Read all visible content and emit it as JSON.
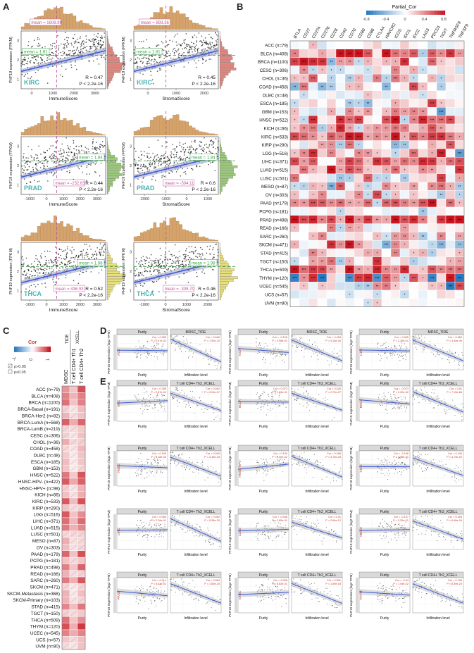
{
  "panels": {
    "A": "A",
    "B": "B",
    "C": "C",
    "D": "D",
    "E": "E"
  },
  "panel_a": {
    "ylabel": "PHF19 expression (FPKM)",
    "plots": [
      {
        "cancer": "KIRC",
        "xlabel": "ImmuneScore",
        "mean_x": "mean = 1608.99",
        "mean_y": "mean = 1.81",
        "R": "R = 0.47",
        "P": "P < 2.2e-16",
        "xticks": [
          "0",
          "1000",
          "2000",
          "3000"
        ],
        "yticks": [
          "1",
          "2",
          "3"
        ],
        "histcolor": "#e0877f"
      },
      {
        "cancer": "KIRC",
        "xlabel": "StromalScore",
        "mean_x": "mean = 893.36",
        "mean_y": "mean = 1.81",
        "R": "R = 0.45",
        "P": "P < 2.2e-16",
        "xticks": [
          "0",
          "1000",
          "2000"
        ],
        "yticks": [
          "1",
          "2",
          "3"
        ],
        "histcolor": "#e0877f"
      },
      {
        "cancer": "PRAD",
        "xlabel": "ImmuneScore",
        "mean_x": "mean = -152.63",
        "mean_y": "mean = 1.84",
        "R": "R = 0.44",
        "P": "P < 2.2e-16",
        "xticks": [
          "-1000",
          "0",
          "1000",
          "2000",
          "3000"
        ],
        "yticks": [
          "1",
          "2",
          "3"
        ],
        "histcolor": "#9cc97a"
      },
      {
        "cancer": "PRAD",
        "xlabel": "StromalScore",
        "mean_x": "mean = -504.11",
        "mean_y": "mean = 1.84",
        "R": "R = 0.6",
        "P": "P < 2.2e-16",
        "xticks": [
          "-2000",
          "-1000",
          "0",
          "1000"
        ],
        "yticks": [
          "1",
          "2",
          "3"
        ],
        "histcolor": "#9cc97a"
      },
      {
        "cancer": "THCA",
        "xlabel": "ImmuneScore",
        "mean_x": "mean = 436.93",
        "mean_y": "mean = 1.98",
        "R": "R = 0.52",
        "P": "P < 2.2e-16",
        "xticks": [
          "-1000",
          "0",
          "1000",
          "2000",
          "3000"
        ],
        "yticks": [
          "1",
          "2",
          "3"
        ],
        "histcolor": "#e8e07a"
      },
      {
        "cancer": "THCA",
        "xlabel": "StromalScore",
        "mean_x": "mean = -308.70",
        "mean_y": "mean = 1.98",
        "R": "R = 0.46",
        "P": "P < 2.2e-16",
        "xticks": [
          "-1000",
          "0",
          "1000",
          "2000"
        ],
        "yticks": [
          "1",
          "2",
          "3"
        ],
        "histcolor": "#e8e07a"
      }
    ]
  },
  "panel_b": {
    "legend_title": "Partial_Cor",
    "legend_ticks": [
      "-0.8",
      "-0.4",
      "0",
      "0.4",
      "0.8"
    ],
    "genes": [
      "BTLA",
      "CD27",
      "CD274",
      "CD276",
      "CD28",
      "CD40",
      "CD70",
      "CD80",
      "CD86",
      "CTLA4",
      "HAVCR2",
      "ICOS",
      "IDO1",
      "IDO2",
      "LAG3",
      "PDCD1",
      "TIGIT",
      "TNFRSF9",
      "TNFSF9"
    ],
    "rows": [
      "ACC (n=79)",
      "BLCA (n=408)",
      "BRCA (n=1100)",
      "CESC (n=306)",
      "CHOL (n=36)",
      "COAD (n=458)",
      "DLBC (n=48)",
      "ESCA (n=185)",
      "GBM (n=153)",
      "HNSC (n=522)",
      "KICH (n=66)",
      "KIRC (n=533)",
      "KIRP (n=290)",
      "LGG (n=516)",
      "LIHC (n=371)",
      "LUAD (n=515)",
      "LUSC (n=501)",
      "MESO (n=87)",
      "OV (n=303)",
      "PAAD (n=179)",
      "PCPG (n=181)",
      "PRAD (n=498)",
      "READ (n=166)",
      "SARC (n=260)",
      "SKCM (n=471)",
      "STAD (n=415)",
      "TGCT (n=150)",
      "THCA (n=509)",
      "THYM (n=120)",
      "UCEC (n=545)",
      "UCS (n=57)",
      "UVM (n=80)"
    ]
  },
  "panel_c": {
    "legend_title": "Cor",
    "legend_ticks": [
      "-1",
      "0",
      "1"
    ],
    "sig_legend": [
      "p>0.05",
      "p≤0.05"
    ],
    "group_labels": [
      "TIDE",
      "XCELL"
    ],
    "columns": [
      "MDSC",
      "T cell CD4+ Th1",
      "T cell CD4+ Th2"
    ],
    "rows": [
      "ACC (n=79)",
      "BLCA (n=408)",
      "BRCA (n=1100)",
      "BRCA-Basal (n=191)",
      "BRCA-Her2 (n=82)",
      "BRCA-LumA (n=568)",
      "BRCA-LumB (n=219)",
      "CESC (n=306)",
      "CHOL (n=36)",
      "COAD (n=458)",
      "DLBC (n=48)",
      "ESCA (n=185)",
      "GBM (n=153)",
      "HNSC (n=522)",
      "HNSC-HPV- (n=422)",
      "HNSC-HPV+ (n=98)",
      "KICH (n=66)",
      "KIRC (n=533)",
      "KIRP (n=290)",
      "LGG (n=516)",
      "LIHC (n=371)",
      "LUAD (n=515)",
      "LUSC (n=501)",
      "MESO (n=87)",
      "OV (n=303)",
      "PAAD (n=179)",
      "PCPG (n=181)",
      "PRAD (n=498)",
      "READ (n=166)",
      "SARC (n=260)",
      "SKCM (n=471)",
      "SKCM-Metastasis (n=368)",
      "SKCM-Primary (n=103)",
      "STAD (n=415)",
      "TGCT (n=150)",
      "THCA (n=509)",
      "THYM (n=120)",
      "UCEC (n=545)",
      "UCS (n=57)",
      "UVM (n=80)"
    ]
  },
  "panel_de": {
    "ylabel": "PHF19 expression (log2 TPM)",
    "xlabel_purity": "Purity",
    "xlabel_infil": "Infiltration level",
    "d_plots": [
      {
        "cancer": "ACC",
        "right_title": "MDSC_TIDE",
        "cor1": "Cor = 0.289",
        "p1": "P = 2.67e-02",
        "cor2": "Cor = 0.646",
        "p2": "P = 7.92e-10"
      },
      {
        "cancer": "KICH",
        "right_title": "MDSC_TIDE",
        "cor1": "Cor = -0.106",
        "p1": "P = 3.98e-01",
        "cor2": "Cor = 0.423",
        "p2": "P = 4.10e-04"
      },
      {
        "cancer": "LIHC",
        "right_title": "MDSC_TIDE",
        "cor1": "Cor = 0.065",
        "p1": "P = 2.26e-01",
        "cor2": "Cor = 0.669",
        "p2": "P = 3.49e-49"
      }
    ],
    "e_plots": [
      {
        "cancer": "ACC",
        "right_title": "T cell CD4+ Th2_XCELL",
        "cor1": "Cor = 0.289",
        "p1": "P = 2.67e-02",
        "cor2": "Cor = 0.552",
        "p2": "P = 2.24e-07"
      },
      {
        "cancer": "BLCA",
        "right_title": "T cell CD4+ Th2_XCELL",
        "cor1": "Cor = 0.073",
        "p1": "P = 1.63e-01",
        "cor2": "Cor = 0.526",
        "p2": "P = 2.72e-27"
      },
      {
        "cancer": "BRCA",
        "right_title": "T cell CD4+ Th2_XCELL",
        "cor1": "Cor = -0.073",
        "p1": "P = 2.20e-02",
        "cor2": "Cor = 0.51",
        "p2": "P = 7.19e-66"
      },
      {
        "cancer": "HNSC",
        "right_title": "T cell CD4+ Th2_XCELL",
        "cor1": "Cor = 0.156",
        "p1": "P = 5.18e-04",
        "cor2": "Cor = 0.509",
        "p2": "P = 3.16e-34"
      },
      {
        "cancer": "HNSC-HPV-",
        "right_title": "T cell CD4+ Th2_XCELL",
        "cor1": "Cor = 0.109",
        "p1": "P = 3.00e-02",
        "cor2": "Cor = 0.496",
        "p2": "P = 4.70e-25"
      },
      {
        "cancer": "KICH",
        "right_title": "T cell CD4+ Th2_XCELL",
        "cor1": "Cor = -0.106",
        "p1": "P = 3.98e-01",
        "cor2": "Cor = 0.245",
        "p2": "P = 4.73e-02"
      },
      {
        "cancer": "LIHC",
        "right_title": "T cell CD4+ Th2_XCELL",
        "cor1": "Cor = 0.065",
        "p1": "P = 2.26e-01",
        "cor2": "Cor = 0.552",
        "p2": "P = 5.35e-29"
      },
      {
        "cancer": "LUAD",
        "right_title": "T cell CD4+ Th2_XCELL",
        "cor1": "Cor = -0.048",
        "p1": "P = 2.85e-01",
        "cor2": "Cor = 0.31",
        "p2": "P = 2.94e-12"
      },
      {
        "cancer": "MESO",
        "right_title": "T cell CD4+ Th2_XCELL",
        "cor1": "Cor = -0.107",
        "p1": "P = 3.25e-01",
        "cor2": "Cor = 0.353",
        "p2": "P = 6.48e-04"
      },
      {
        "cancer": "PAAD",
        "right_title": "T cell CD4+ Th2_XCELL",
        "cor1": "Cor = 0.014",
        "p1": "P = 8.63e-01",
        "cor2": "Cor = 0.564",
        "p2": "P = 1.60e-15"
      },
      {
        "cancer": "SARC",
        "right_title": "T cell CD4+ Th2_XCELL",
        "cor1": "Cor = 0.008",
        "p1": "P = 8.82e-01",
        "cor2": "Cor = 0.501",
        "p2": "P = 1.59e-18"
      },
      {
        "cancer": "THYM",
        "right_title": "T cell CD4+ Th2_XCELL",
        "cor1": "Cor = -0.24",
        "p1": "P = 1.04e-02",
        "cor2": "Cor = 0.708",
        "p2": "P = 8.39e-20"
      }
    ]
  },
  "colors": {
    "pos": "#d7191c",
    "neg": "#2c7bb6",
    "line": "#3b5bd6",
    "gray": "#e6e6e6",
    "hist": "#d6a36a"
  }
}
